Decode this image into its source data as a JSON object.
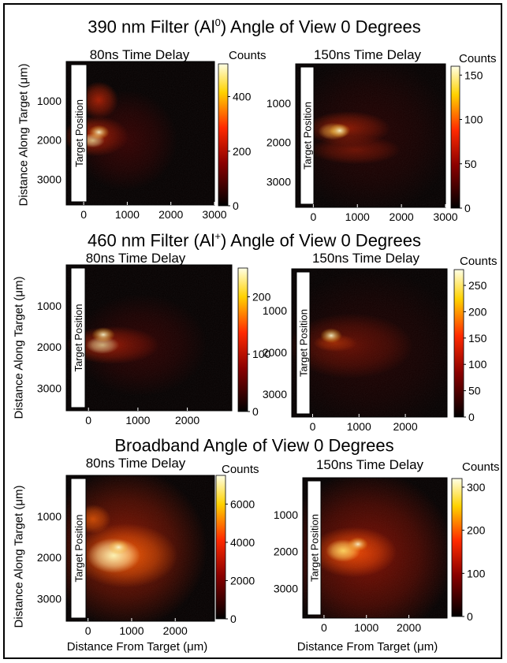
{
  "figure": {
    "row_titles": [
      {
        "pre": "390 nm Filter (Al",
        "sup": "0",
        "post": ") Angle of View 0 Degrees"
      },
      {
        "pre": "460 nm Filter (Al",
        "sup": "+",
        "post": ") Angle of View 0 Degrees"
      },
      {
        "pre": "Broadband Angle of View 0 Degrees",
        "sup": "",
        "post": ""
      }
    ],
    "ylabel": "Distance Along Target (μm)",
    "xlabel": "Distance From Target (μm)",
    "target_label": "Target Position",
    "colorbar_title": "Counts"
  },
  "chart_data": [
    {
      "type": "heatmap",
      "row": 0,
      "title": "80ns Time Delay",
      "colorbar_label": "Counts",
      "colorbar_ticks": [
        0,
        200,
        400
      ],
      "colorbar_range": [
        0,
        520
      ],
      "x_ticks": [
        0,
        1000,
        2000,
        3000
      ],
      "y_ticks": [
        1000,
        2000,
        3000
      ],
      "xlim": [
        -400,
        3000
      ],
      "ylim": [
        0,
        3650
      ],
      "xlabel": "",
      "ylabel": "Distance Along Target (μm)",
      "colormap": "hot",
      "peak": {
        "x": 350,
        "y": 1800
      }
    },
    {
      "type": "heatmap",
      "row": 0,
      "title": "150ns Time Delay",
      "colorbar_label": "Counts",
      "colorbar_ticks": [
        0,
        50,
        100,
        150
      ],
      "colorbar_range": [
        0,
        160
      ],
      "x_ticks": [
        0,
        1000,
        2000,
        3000
      ],
      "y_ticks": [
        1000,
        2000,
        3000
      ],
      "xlim": [
        -400,
        3000
      ],
      "ylim": [
        0,
        3650
      ],
      "xlabel": "",
      "ylabel": "",
      "colormap": "hot",
      "peak": {
        "x": 600,
        "y": 1700
      }
    },
    {
      "type": "heatmap",
      "row": 1,
      "title": "80ns Time Delay",
      "colorbar_label": "Counts",
      "colorbar_ticks": [
        0,
        100,
        200
      ],
      "colorbar_range": [
        0,
        250
      ],
      "x_ticks": [
        0,
        1000,
        2000
      ],
      "y_ticks": [
        1000,
        2000,
        3000
      ],
      "xlim": [
        -450,
        2900
      ],
      "ylim": [
        0,
        3550
      ],
      "xlabel": "",
      "ylabel": "Distance Along Target (μm)",
      "colormap": "hot",
      "peak": {
        "x": 300,
        "y": 1700
      }
    },
    {
      "type": "heatmap",
      "row": 1,
      "title": "150ns Time Delay",
      "colorbar_label": "Counts",
      "colorbar_ticks": [
        0,
        50,
        100,
        150,
        200,
        250
      ],
      "colorbar_range": [
        0,
        280
      ],
      "x_ticks": [
        0,
        1000,
        2000
      ],
      "y_ticks": [
        1000,
        2000,
        3000
      ],
      "xlim": [
        -450,
        2900
      ],
      "ylim": [
        0,
        3550
      ],
      "xlabel": "",
      "ylabel": "",
      "colormap": "hot",
      "peak": {
        "x": 400,
        "y": 1600
      }
    },
    {
      "type": "heatmap",
      "row": 2,
      "title": "80ns Time Delay",
      "colorbar_label": "Counts",
      "colorbar_ticks": [
        0,
        2000,
        4000,
        6000
      ],
      "colorbar_range": [
        0,
        7500
      ],
      "x_ticks": [
        0,
        1000,
        2000
      ],
      "y_ticks": [
        1000,
        2000,
        3000
      ],
      "xlim": [
        -500,
        2900
      ],
      "ylim": [
        0,
        3550
      ],
      "xlabel": "Distance From Target (μm)",
      "ylabel": "Distance Along Target (μm)",
      "colormap": "hot",
      "peak": {
        "x": 700,
        "y": 1750
      }
    },
    {
      "type": "heatmap",
      "row": 2,
      "title": "150ns Time Delay",
      "colorbar_label": "Counts",
      "colorbar_ticks": [
        0,
        100,
        200,
        300
      ],
      "colorbar_range": [
        0,
        320
      ],
      "x_ticks": [
        0,
        1000,
        2000
      ],
      "y_ticks": [
        1000,
        2000,
        3000
      ],
      "xlim": [
        -500,
        2900
      ],
      "ylim": [
        0,
        3800
      ],
      "xlabel": "Distance From Target (μm)",
      "ylabel": "",
      "colormap": "hot",
      "peak": {
        "x": 800,
        "y": 1800
      }
    }
  ]
}
